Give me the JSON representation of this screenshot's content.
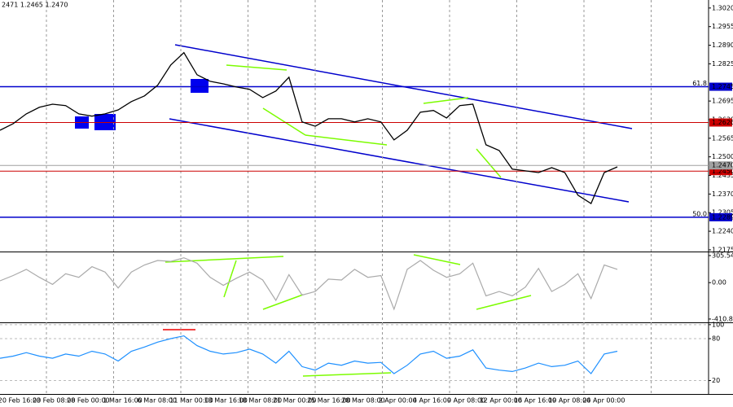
{
  "chart_data": [
    {
      "type": "line",
      "title": "2471 1.2465 1.2470",
      "color": "#000000",
      "values": [
        1.2593,
        1.2616,
        1.265,
        1.2673,
        1.2684,
        1.2679,
        1.265,
        1.2642,
        1.265,
        1.2664,
        1.2693,
        1.2713,
        1.275,
        1.2821,
        1.2864,
        1.2787,
        1.2764,
        1.2755,
        1.2744,
        1.2736,
        1.2707,
        1.273,
        1.2778,
        1.2622,
        1.2607,
        1.2633,
        1.2633,
        1.2622,
        1.2633,
        1.2622,
        1.2559,
        1.2593,
        1.2656,
        1.2662,
        1.2636,
        1.2679,
        1.2684,
        1.2542,
        1.2522,
        1.2457,
        1.2451,
        1.2445,
        1.2462,
        1.2445,
        1.2366,
        1.2337,
        1.2445,
        1.2465
      ],
      "ylim": [
        1.2172,
        1.3048
      ],
      "yticks": [
        {
          "value": 1.302,
          "label": "1.3020"
        },
        1.2955,
        {
          "value": 1.289,
          "label": "1.2890"
        },
        1.2825,
        1.2695,
        {
          "value": 1.263,
          "label": "1.2630"
        },
        1.2565,
        {
          "value": 1.25,
          "label": "1.2500"
        },
        1.2435,
        {
          "value": 1.237,
          "label": "1.2370"
        },
        1.2305,
        {
          "value": 1.224,
          "label": "1.2240"
        },
        1.2175
      ],
      "levels": [
        {
          "value": 1.2745,
          "name": "61.8",
          "color": "#0000cc"
        },
        {
          "value": 1.2289,
          "name": "50.0",
          "color": "#0000cc"
        },
        {
          "value": 1.262,
          "label": "1.2620",
          "color": "#cc0000"
        },
        {
          "value": 1.245,
          "label": "1.2450",
          "color": "#cc0000"
        },
        {
          "value": 1.247,
          "label": "1.2470",
          "color": "#a0a0a0"
        }
      ],
      "x_labels": [
        "20 Feb 16:00",
        "23 Feb 08:00",
        "28 Feb 00:00",
        "1 Mar 16:00",
        "6 Mar 08:00",
        "11 Mar 00:00",
        "13 Mar 16:00",
        "18 Mar 08:00",
        "21 Mar 00:00",
        "25 Mar 16:00",
        "28 Mar 08:00",
        "2 Apr 00:00",
        "4 Apr 16:00",
        "9 Apr 08:00",
        "12 Apr 00:00",
        "16 Apr 16:00",
        "19 Apr 08:00",
        "24 Apr 00:00"
      ]
    },
    {
      "type": "line",
      "color": "#aaaaaa",
      "values": [
        20,
        80,
        150,
        60,
        -20,
        100,
        60,
        180,
        120,
        -60,
        120,
        200,
        250,
        240,
        280,
        220,
        60,
        -30,
        50,
        120,
        30,
        -200,
        90,
        -140,
        -100,
        40,
        30,
        150,
        60,
        80,
        -300,
        150,
        250,
        140,
        60,
        100,
        220,
        -150,
        -100,
        -150,
        -50,
        160,
        -100,
        -20,
        100,
        -180,
        200,
        150
      ],
      "ylim": [
        -439,
        342
      ],
      "yticks": [
        305.5401,
        {
          "value": 0,
          "label": "0.00"
        },
        -410.803
      ]
    },
    {
      "type": "line",
      "color": "#1e90ff",
      "values": [
        52,
        55,
        60,
        55,
        52,
        58,
        55,
        62,
        58,
        48,
        62,
        68,
        75,
        80,
        84,
        70,
        62,
        58,
        60,
        65,
        58,
        45,
        62,
        40,
        35,
        45,
        42,
        48,
        45,
        46,
        30,
        42,
        58,
        62,
        52,
        55,
        64,
        38,
        35,
        33,
        38,
        45,
        40,
        42,
        48,
        30,
        58,
        62
      ],
      "ylim": [
        2,
        101
      ],
      "yticks": [
        100,
        80,
        20
      ]
    }
  ]
}
